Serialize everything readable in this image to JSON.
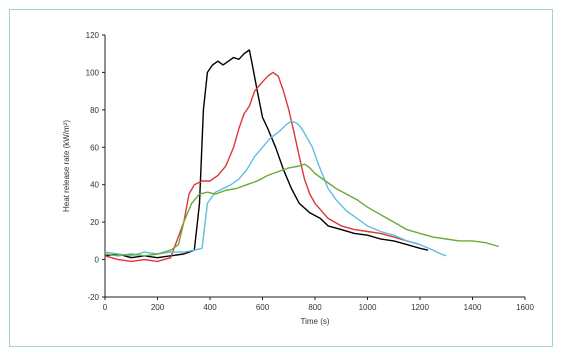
{
  "chart_data": {
    "type": "line",
    "title": "",
    "xlabel": "Time (s)",
    "ylabel": "Heat release rate (kW/m²)",
    "xlim": [
      0,
      1600
    ],
    "ylim": [
      -20,
      120
    ],
    "xticks": [
      0,
      200,
      400,
      600,
      800,
      1000,
      1200,
      1400,
      1600
    ],
    "yticks": [
      -20,
      0,
      20,
      40,
      60,
      80,
      100,
      120
    ],
    "grid": false,
    "series": [
      {
        "color": "#000000",
        "points": [
          [
            0,
            2
          ],
          [
            50,
            3
          ],
          [
            100,
            1
          ],
          [
            150,
            2
          ],
          [
            200,
            1
          ],
          [
            250,
            2
          ],
          [
            300,
            3
          ],
          [
            340,
            5
          ],
          [
            360,
            30
          ],
          [
            375,
            80
          ],
          [
            390,
            100
          ],
          [
            410,
            104
          ],
          [
            430,
            106
          ],
          [
            450,
            104
          ],
          [
            470,
            106
          ],
          [
            490,
            108
          ],
          [
            510,
            107
          ],
          [
            530,
            110
          ],
          [
            550,
            112
          ],
          [
            560,
            105
          ],
          [
            580,
            90
          ],
          [
            600,
            76
          ],
          [
            620,
            70
          ],
          [
            650,
            60
          ],
          [
            680,
            48
          ],
          [
            710,
            38
          ],
          [
            740,
            30
          ],
          [
            780,
            25
          ],
          [
            820,
            22
          ],
          [
            850,
            18
          ],
          [
            900,
            16
          ],
          [
            950,
            14
          ],
          [
            1000,
            13
          ],
          [
            1050,
            11
          ],
          [
            1100,
            10
          ],
          [
            1150,
            8
          ],
          [
            1200,
            6
          ],
          [
            1230,
            5
          ]
        ]
      },
      {
        "color": "#e0363a",
        "points": [
          [
            0,
            2
          ],
          [
            50,
            0
          ],
          [
            100,
            -1
          ],
          [
            150,
            0
          ],
          [
            200,
            -1
          ],
          [
            250,
            1
          ],
          [
            300,
            20
          ],
          [
            320,
            35
          ],
          [
            340,
            40
          ],
          [
            370,
            42
          ],
          [
            400,
            42
          ],
          [
            430,
            45
          ],
          [
            460,
            50
          ],
          [
            490,
            60
          ],
          [
            510,
            70
          ],
          [
            530,
            78
          ],
          [
            550,
            82
          ],
          [
            570,
            90
          ],
          [
            600,
            95
          ],
          [
            620,
            98
          ],
          [
            640,
            100
          ],
          [
            660,
            98
          ],
          [
            680,
            90
          ],
          [
            700,
            80
          ],
          [
            720,
            68
          ],
          [
            740,
            55
          ],
          [
            760,
            43
          ],
          [
            780,
            35
          ],
          [
            800,
            30
          ],
          [
            850,
            22
          ],
          [
            900,
            18
          ],
          [
            950,
            16
          ],
          [
            1000,
            15
          ],
          [
            1050,
            14
          ],
          [
            1100,
            12
          ],
          [
            1150,
            10
          ],
          [
            1200,
            8
          ]
        ]
      },
      {
        "color": "#5fbfdf",
        "points": [
          [
            0,
            4
          ],
          [
            50,
            3
          ],
          [
            100,
            2
          ],
          [
            150,
            4
          ],
          [
            200,
            3
          ],
          [
            250,
            4
          ],
          [
            300,
            4
          ],
          [
            340,
            5
          ],
          [
            370,
            6
          ],
          [
            390,
            30
          ],
          [
            420,
            36
          ],
          [
            450,
            38
          ],
          [
            480,
            40
          ],
          [
            510,
            43
          ],
          [
            540,
            48
          ],
          [
            570,
            55
          ],
          [
            600,
            60
          ],
          [
            630,
            65
          ],
          [
            660,
            68
          ],
          [
            690,
            72
          ],
          [
            710,
            74
          ],
          [
            730,
            73
          ],
          [
            750,
            70
          ],
          [
            770,
            65
          ],
          [
            790,
            60
          ],
          [
            810,
            52
          ],
          [
            830,
            45
          ],
          [
            850,
            38
          ],
          [
            880,
            32
          ],
          [
            920,
            26
          ],
          [
            960,
            22
          ],
          [
            1000,
            18
          ],
          [
            1050,
            15
          ],
          [
            1100,
            13
          ],
          [
            1150,
            10
          ],
          [
            1200,
            8
          ],
          [
            1250,
            5
          ],
          [
            1280,
            3
          ],
          [
            1300,
            2
          ]
        ]
      },
      {
        "color": "#6aaa3a",
        "points": [
          [
            0,
            3
          ],
          [
            50,
            2
          ],
          [
            100,
            3
          ],
          [
            150,
            2
          ],
          [
            200,
            3
          ],
          [
            250,
            5
          ],
          [
            280,
            8
          ],
          [
            300,
            20
          ],
          [
            330,
            30
          ],
          [
            360,
            35
          ],
          [
            390,
            36
          ],
          [
            420,
            35
          ],
          [
            460,
            37
          ],
          [
            500,
            38
          ],
          [
            540,
            40
          ],
          [
            580,
            42
          ],
          [
            620,
            45
          ],
          [
            660,
            47
          ],
          [
            700,
            49
          ],
          [
            740,
            50
          ],
          [
            760,
            51
          ],
          [
            780,
            49
          ],
          [
            800,
            46
          ],
          [
            840,
            42
          ],
          [
            880,
            38
          ],
          [
            920,
            35
          ],
          [
            960,
            32
          ],
          [
            1000,
            28
          ],
          [
            1050,
            24
          ],
          [
            1100,
            20
          ],
          [
            1150,
            16
          ],
          [
            1200,
            14
          ],
          [
            1250,
            12
          ],
          [
            1300,
            11
          ],
          [
            1350,
            10
          ],
          [
            1400,
            10
          ],
          [
            1450,
            9
          ],
          [
            1500,
            7
          ]
        ]
      }
    ]
  }
}
